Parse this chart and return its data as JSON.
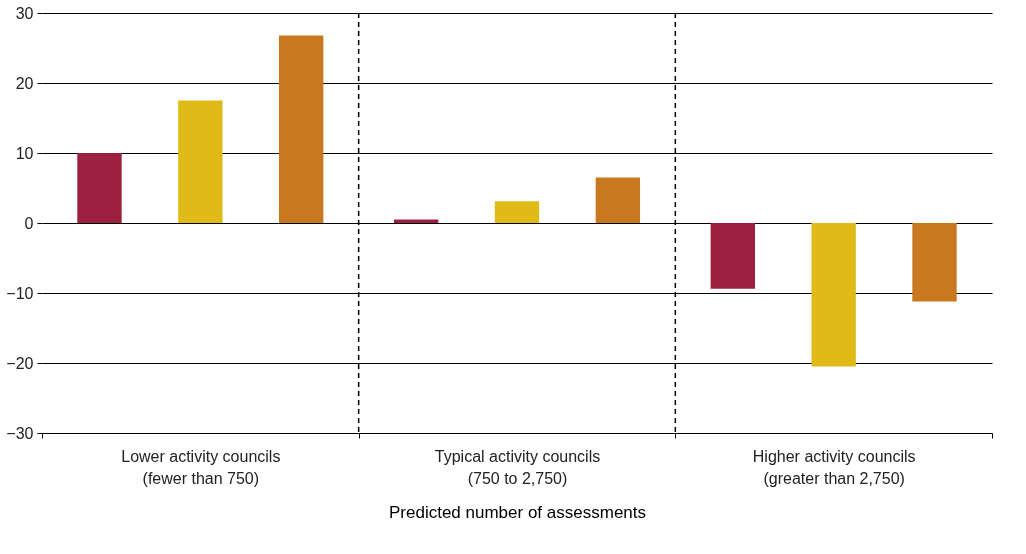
{
  "chart_data": {
    "type": "bar",
    "xlabel": "Predicted number of assessments",
    "categories": [
      "Lower activity councils\n(fewer than 750)",
      "Typical activity councils\n(750 to 2,750)",
      "Higher activity councils\n(greater than 2,750)"
    ],
    "series": [
      {
        "color": "#9b2040",
        "values": [
          10,
          0.5,
          -9.4
        ]
      },
      {
        "color": "#e0bb17",
        "values": [
          17.5,
          3.1,
          -20.5
        ]
      },
      {
        "color": "#c8781f",
        "values": [
          26.8,
          6.5,
          -11.2
        ]
      }
    ],
    "ylim": [
      -30,
      30
    ],
    "yticks": [
      -30,
      -20,
      -10,
      0,
      10,
      20,
      30
    ],
    "grid": "y",
    "legend": false
  }
}
